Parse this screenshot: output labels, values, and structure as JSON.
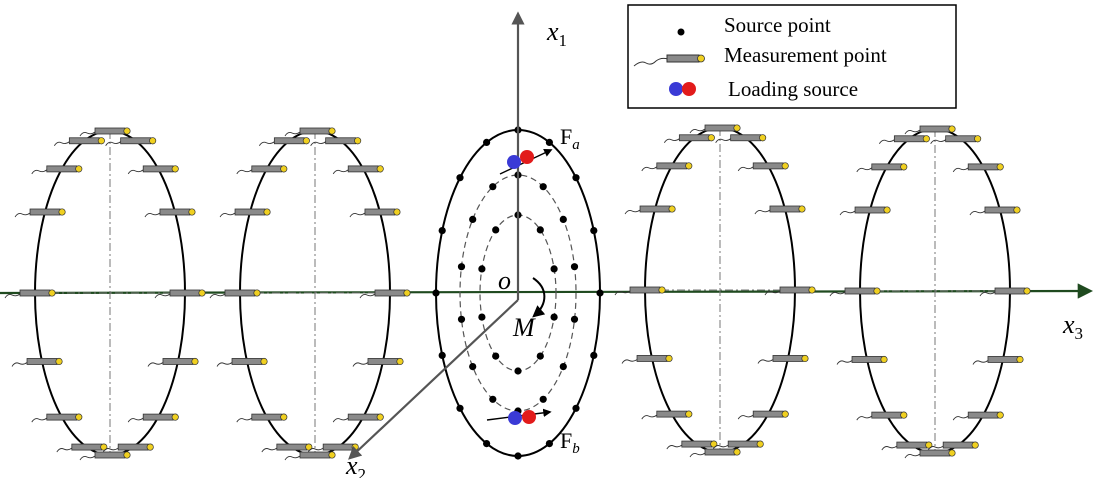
{
  "legend": {
    "source_point": "Source point",
    "measurement_point": "Measurement point",
    "loading_source": "Loading source"
  },
  "axes": {
    "x1": {
      "base": "x",
      "sub": "1"
    },
    "x2": {
      "base": "x",
      "sub": "2"
    },
    "x3": {
      "base": "x",
      "sub": "3"
    },
    "origin": "o"
  },
  "moment_label": "M",
  "forces": {
    "Fa": {
      "base": "F",
      "sub": "a"
    },
    "Fb": {
      "base": "F",
      "sub": "b"
    }
  },
  "colors": {
    "axis": "#555555",
    "x3_axis": "#1f4a1f",
    "sensor_body": "#8a8a8a",
    "sensor_tip": "#f0d020",
    "source_point": "#000000",
    "load_blue": "#3a3ad6",
    "load_red": "#e21b1b"
  }
}
